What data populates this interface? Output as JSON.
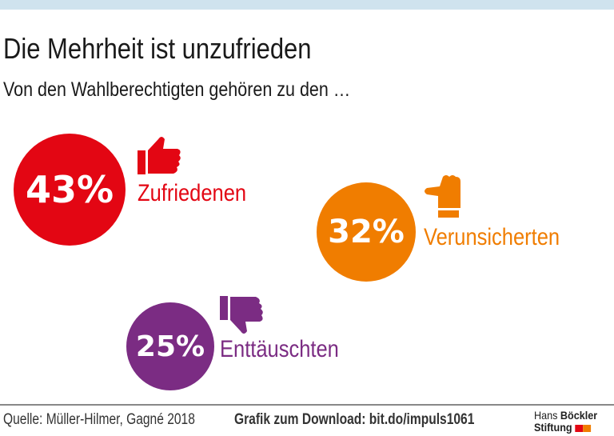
{
  "title": "Die Mehrheit ist unzufrieden",
  "subtitle": "Von den Wahlberechtigten gehören zu den …",
  "chart_data": {
    "type": "bubble",
    "categories": [
      "Zufriedenen",
      "Verunsicherten",
      "Enttäuschten"
    ],
    "values": [
      43,
      32,
      25
    ],
    "labels": [
      "43%",
      "32%",
      "25%"
    ],
    "colors": [
      "#e30613",
      "#f07d00",
      "#7b2c83"
    ],
    "icons": [
      "thumbs-up-icon",
      "thumbs-sideways-icon",
      "thumbs-down-icon"
    ]
  },
  "footer": {
    "source": "Quelle: Müller-Hilmer, Gagné 2018",
    "download": "Grafik zum Download: bit.do/impuls1061",
    "logo_line1a": "Hans",
    "logo_line1b": "Böckler",
    "logo_line2": "Stiftung"
  }
}
